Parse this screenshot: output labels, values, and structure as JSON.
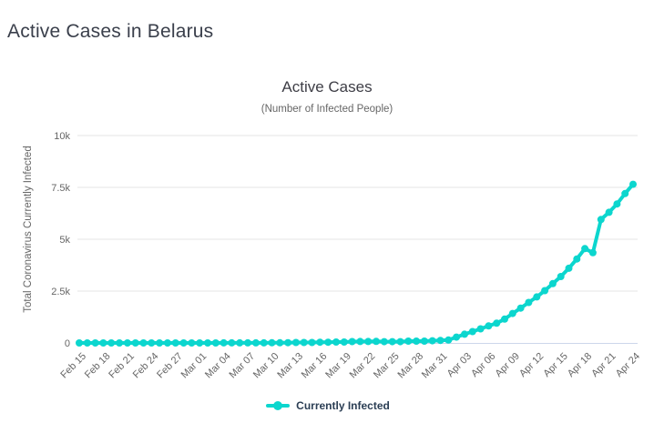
{
  "page": {
    "title": "Active Cases in Belarus"
  },
  "colors": {
    "series": "#0cd6ce",
    "page_title": "#3a3f4b",
    "chart_title": "#3e3e46",
    "subtitle_text": "#666666",
    "axis_label": "#666666",
    "gridline": "#e6e6e6",
    "axis_line": "#ccd6eb",
    "legend_text": "#2b3e54"
  },
  "chart_data": {
    "type": "line",
    "title": "Active Cases",
    "subtitle": "(Number of Infected People)",
    "xlabel": "",
    "ylabel": "Total Coronavirus Currently Infected",
    "ylim": [
      0,
      10000
    ],
    "yticks": [
      0,
      2500,
      5000,
      7500,
      10000
    ],
    "ytick_labels": [
      "0",
      "2.5k",
      "5k",
      "7.5k",
      "10k"
    ],
    "x_interval": "daily",
    "x_start": "Feb 15",
    "x_end": "Apr 24",
    "x_tick_step": 3,
    "x_tick_labels": [
      "Feb 15",
      "Feb 18",
      "Feb 21",
      "Feb 24",
      "Feb 27",
      "Mar 01",
      "Mar 04",
      "Mar 07",
      "Mar 10",
      "Mar 13",
      "Mar 16",
      "Mar 19",
      "Mar 22",
      "Mar 25",
      "Mar 28",
      "Mar 31",
      "Apr 03",
      "Apr 06",
      "Apr 09",
      "Apr 12",
      "Apr 15",
      "Apr 18",
      "Apr 21",
      "Apr 24"
    ],
    "grid": "horizontal-only",
    "legend_position": "bottom-center",
    "series": [
      {
        "name": "Currently Infected",
        "color": "#0cd6ce",
        "marker": "circle",
        "values": [
          0,
          0,
          0,
          0,
          0,
          0,
          0,
          0,
          0,
          0,
          0,
          0,
          0,
          1,
          1,
          1,
          1,
          1,
          4,
          4,
          6,
          6,
          6,
          6,
          9,
          9,
          12,
          24,
          24,
          24,
          33,
          33,
          46,
          46,
          64,
          69,
          69,
          76,
          63,
          63,
          63,
          86,
          86,
          86,
          107,
          121,
          140,
          280,
          420,
          550,
          680,
          820,
          950,
          1150,
          1420,
          1680,
          1950,
          2220,
          2520,
          2860,
          3200,
          3600,
          4050,
          4550,
          4350,
          5950,
          6300,
          6700,
          7200,
          7650
        ]
      }
    ]
  }
}
